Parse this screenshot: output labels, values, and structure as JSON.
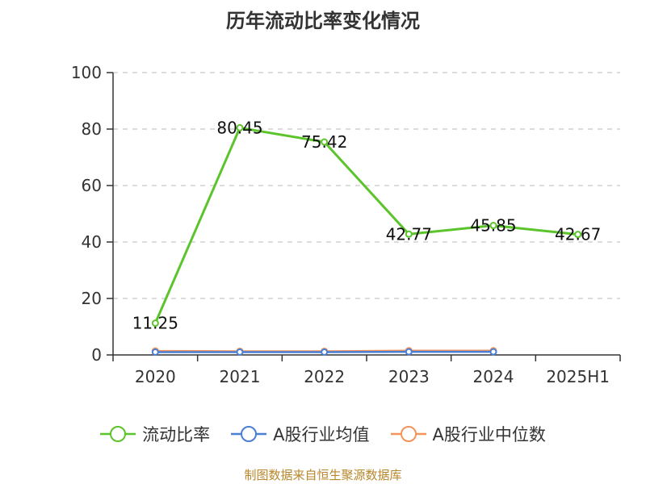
{
  "chart_data": {
    "type": "line",
    "title": "历年流动比率变化情况",
    "categories": [
      "2020",
      "2021",
      "2022",
      "2023",
      "2024",
      "2025H1"
    ],
    "ylim": [
      0,
      100
    ],
    "yticks": [
      0,
      20,
      40,
      60,
      80,
      100
    ],
    "grid": true,
    "legend_position": "bottom",
    "series": [
      {
        "name": "流动比率",
        "color": "#5bc42b",
        "values": [
          11.25,
          80.45,
          75.42,
          42.77,
          45.85,
          42.67
        ],
        "labels": [
          "11.25",
          "80.45",
          "75.42",
          "42.77",
          "45.85",
          "42.67"
        ]
      },
      {
        "name": "A股行业均值",
        "color": "#4a7fd6",
        "values": [
          1.0,
          1.0,
          1.0,
          1.1,
          1.1,
          null
        ]
      },
      {
        "name": "A股行业中位数",
        "color": "#f4935a",
        "values": [
          1.4,
          1.3,
          1.3,
          1.5,
          1.5,
          null
        ]
      }
    ]
  },
  "source_note": "制图数据来自恒生聚源数据库"
}
